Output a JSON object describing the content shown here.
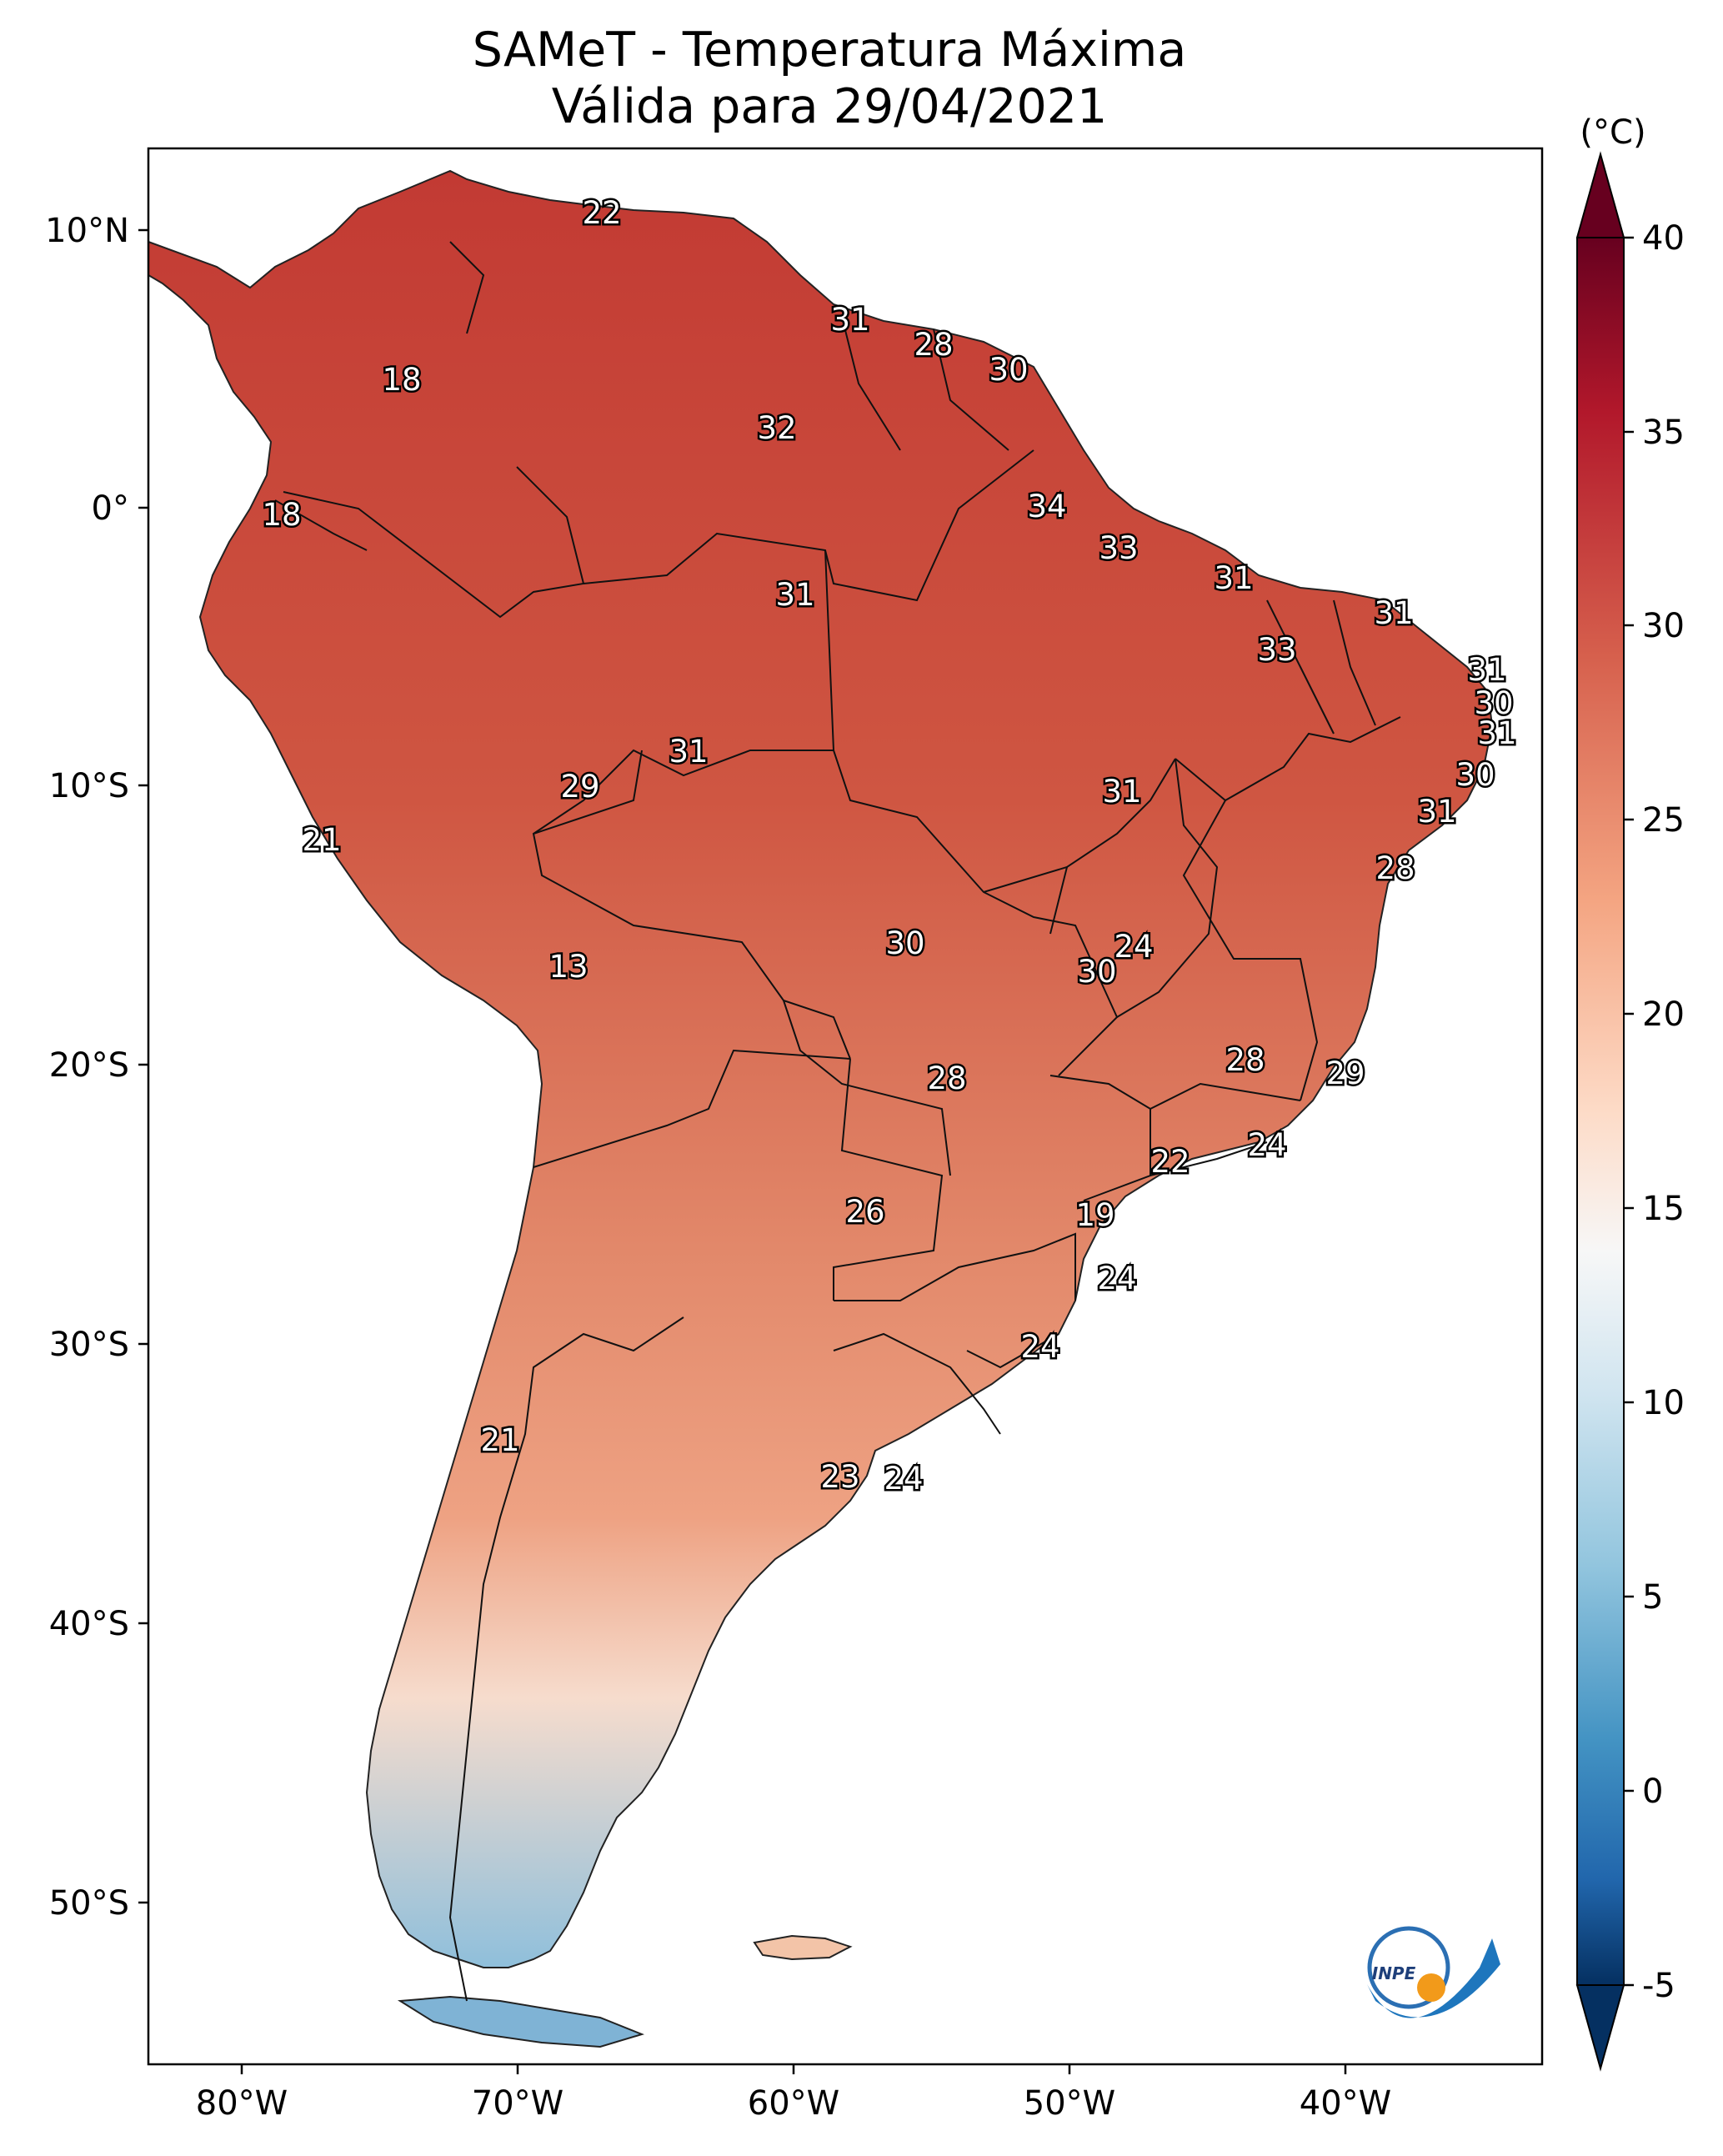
{
  "title": {
    "line1": "SAMeT - Temperatura Máxima",
    "line2": "Válida para 29/04/2021"
  },
  "colorbar": {
    "unit": "(°C)",
    "ticks": [
      "40",
      "35",
      "30",
      "25",
      "20",
      "15",
      "10",
      "5",
      "0",
      "-5"
    ],
    "colors": [
      "#67001f",
      "#b2182b",
      "#d6604d",
      "#f4a582",
      "#fddbc7",
      "#f7f7f7",
      "#d1e5f0",
      "#92c5de",
      "#4393c3",
      "#2166ac",
      "#053061"
    ]
  },
  "axes": {
    "lat_labels": [
      "10°N",
      "0°",
      "10°S",
      "20°S",
      "30°S",
      "40°S",
      "50°S"
    ],
    "lon_labels": [
      "80°W",
      "70°W",
      "60°W",
      "50°W",
      "40°W"
    ]
  },
  "logo": {
    "text": "INPE"
  },
  "cities": [
    {
      "name": "c-22-north",
      "value": "22"
    },
    {
      "name": "c-31-guyana",
      "value": "31"
    },
    {
      "name": "c-28-suriname",
      "value": "28"
    },
    {
      "name": "c-30-french-guiana",
      "value": "30"
    },
    {
      "name": "c-18-colombia",
      "value": "18"
    },
    {
      "name": "c-32-roraima",
      "value": "32"
    },
    {
      "name": "c-18-ecuador",
      "value": "18"
    },
    {
      "name": "c-34-amapa",
      "value": "34"
    },
    {
      "name": "c-33-belem",
      "value": "33"
    },
    {
      "name": "c-31-amazonas",
      "value": "31"
    },
    {
      "name": "c-31-sao-luis",
      "value": "31"
    },
    {
      "name": "c-31-fortaleza",
      "value": "31"
    },
    {
      "name": "c-33-teresina",
      "value": "33"
    },
    {
      "name": "c-31-natal",
      "value": "31"
    },
    {
      "name": "c-30-joao-pessoa",
      "value": "30"
    },
    {
      "name": "c-31-recife",
      "value": "31"
    },
    {
      "name": "c-31-rondonia",
      "value": "31"
    },
    {
      "name": "c-29-acre",
      "value": "29"
    },
    {
      "name": "c-31-tocantins",
      "value": "31"
    },
    {
      "name": "c-30-maceio",
      "value": "30"
    },
    {
      "name": "c-31-aracaju",
      "value": "31"
    },
    {
      "name": "c-21-lima",
      "value": "21"
    },
    {
      "name": "c-28-salvador",
      "value": "28"
    },
    {
      "name": "c-13-la-paz",
      "value": "13"
    },
    {
      "name": "c-30-cuiaba",
      "value": "30"
    },
    {
      "name": "c-24-brasilia",
      "value": "24"
    },
    {
      "name": "c-30-goiania",
      "value": "30"
    },
    {
      "name": "c-28-campo-grande",
      "value": "28"
    },
    {
      "name": "c-28-belo-horizonte",
      "value": "28"
    },
    {
      "name": "c-29-vitoria",
      "value": "29"
    },
    {
      "name": "c-24-rio",
      "value": "24"
    },
    {
      "name": "c-22-sao-paulo",
      "value": "22"
    },
    {
      "name": "c-26-asuncion",
      "value": "26"
    },
    {
      "name": "c-19-curitiba",
      "value": "19"
    },
    {
      "name": "c-24-florianopolis",
      "value": "24"
    },
    {
      "name": "c-24-porto-alegre",
      "value": "24"
    },
    {
      "name": "c-21-santiago",
      "value": "21"
    },
    {
      "name": "c-23-buenos-aires",
      "value": "23"
    },
    {
      "name": "c-24-montevideo",
      "value": "24"
    }
  ]
}
